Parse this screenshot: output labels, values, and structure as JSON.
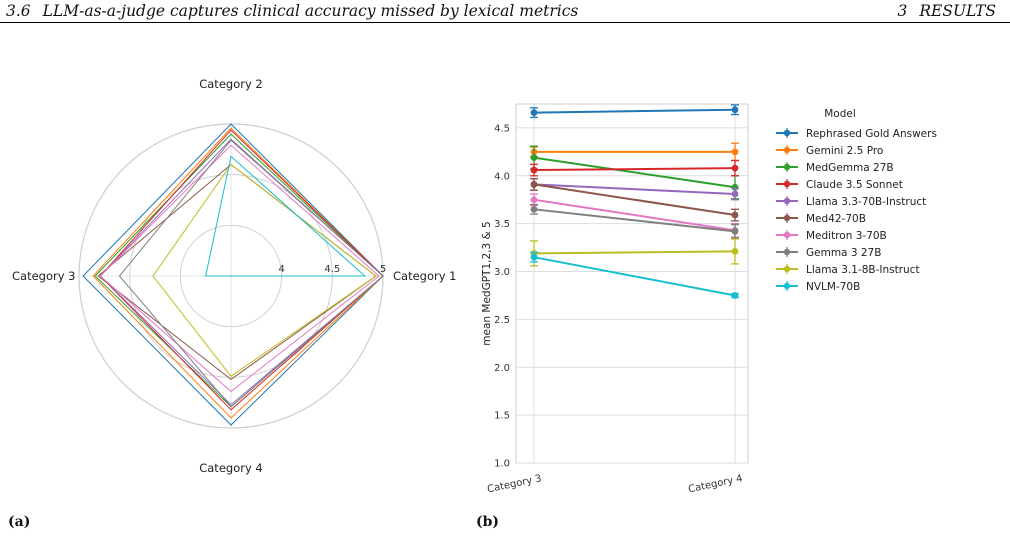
{
  "header": {
    "section_number": "3.6",
    "section_title": "LLM-as-a-judge captures clinical accuracy missed by lexical metrics",
    "chapter_number": "3",
    "chapter_title": "RESULTS"
  },
  "subfigure_labels": [
    "(a)",
    "(b)"
  ],
  "colors": {
    "Rephrased Gold Answers": "#1f77b4",
    "Gemini 2.5 Pro": "#ff7f0e",
    "MedGemma 27B": "#2ca02c",
    "Claude 3.5 Sonnet": "#d62728",
    "Llama 3.3-70B-Instruct": "#9467bd",
    "Med42-70B": "#8c564b",
    "Meditron 3-70B": "#e377c2",
    "Gemma 3 27B": "#7f7f7f",
    "Llama 3.1-8B-Instruct": "#bcbd22",
    "NVLM-70B": "#17becf"
  },
  "chart_data": [
    {
      "type": "radar",
      "categories": [
        "Category 1",
        "Category 2",
        "Category 3",
        "Category 4"
      ],
      "radial_ticks": [
        "4",
        "4.5",
        "5"
      ],
      "rlim": [
        3.5,
        5
      ],
      "series": [
        {
          "name": "Rephrased Gold Answers",
          "values": [
            5.0,
            5.0,
            4.96,
            4.97
          ]
        },
        {
          "name": "Gemini 2.5 Pro",
          "values": [
            5.0,
            4.96,
            4.86,
            4.9
          ]
        },
        {
          "name": "MedGemma 27B",
          "values": [
            5.0,
            4.9,
            4.84,
            4.79
          ]
        },
        {
          "name": "Claude 3.5 Sonnet",
          "values": [
            5.0,
            4.94,
            4.79,
            4.82
          ]
        },
        {
          "name": "Llama 3.3-70B-Instruct",
          "values": [
            5.0,
            4.85,
            4.79,
            4.77
          ]
        },
        {
          "name": "Med42-70B",
          "values": [
            4.93,
            4.6,
            4.81,
            4.52
          ]
        },
        {
          "name": "Meditron 3-70B",
          "values": [
            4.96,
            4.79,
            4.79,
            4.64
          ]
        },
        {
          "name": "Gemma 3 27B",
          "values": [
            5.0,
            4.84,
            4.6,
            4.79
          ]
        },
        {
          "name": "Llama 3.1-8B-Instruct",
          "values": [
            4.93,
            4.6,
            4.27,
            4.49
          ]
        },
        {
          "name": "NVLM-70B",
          "values": [
            4.82,
            4.68,
            3.75,
            3.5
          ]
        }
      ]
    },
    {
      "type": "line",
      "categories": [
        "Category 3",
        "Category 4"
      ],
      "ylabel": "mean MedGPT1,2,3 & 5",
      "ylim": [
        1.0,
        4.75
      ],
      "yticks": [
        "1.0",
        "1.5",
        "2.0",
        "2.5",
        "3.0",
        "3.5",
        "4.0",
        "4.5"
      ],
      "legend_title": "Model",
      "legend_position": "right",
      "grid": true,
      "series": [
        {
          "name": "Rephrased Gold Answers",
          "values": [
            4.66,
            4.69
          ],
          "errors": [
            0.05,
            0.05
          ]
        },
        {
          "name": "Gemini 2.5 Pro",
          "values": [
            4.25,
            4.25
          ],
          "errors": [
            0.05,
            0.09
          ]
        },
        {
          "name": "MedGemma 27B",
          "values": [
            4.19,
            3.88
          ],
          "errors": [
            0.12,
            0.12
          ]
        },
        {
          "name": "Claude 3.5 Sonnet",
          "values": [
            4.06,
            4.08
          ],
          "errors": [
            0.06,
            0.08
          ]
        },
        {
          "name": "Llama 3.3-70B-Instruct",
          "values": [
            3.91,
            3.81
          ],
          "errors": [
            0.06,
            0.06
          ]
        },
        {
          "name": "Med42-70B",
          "values": [
            3.91,
            3.59
          ],
          "errors": [
            0.06,
            0.06
          ]
        },
        {
          "name": "Meditron 3-70B",
          "values": [
            3.75,
            3.43
          ],
          "errors": [
            0.06,
            0.07
          ]
        },
        {
          "name": "Gemma 3 27B",
          "values": [
            3.65,
            3.42
          ],
          "errors": [
            0.05,
            0.07
          ]
        },
        {
          "name": "Llama 3.1-8B-Instruct",
          "values": [
            3.19,
            3.21
          ],
          "errors": [
            0.13,
            0.13
          ]
        },
        {
          "name": "NVLM-70B",
          "values": [
            3.15,
            2.75
          ],
          "errors": [
            0.05,
            0.02
          ]
        }
      ]
    }
  ]
}
